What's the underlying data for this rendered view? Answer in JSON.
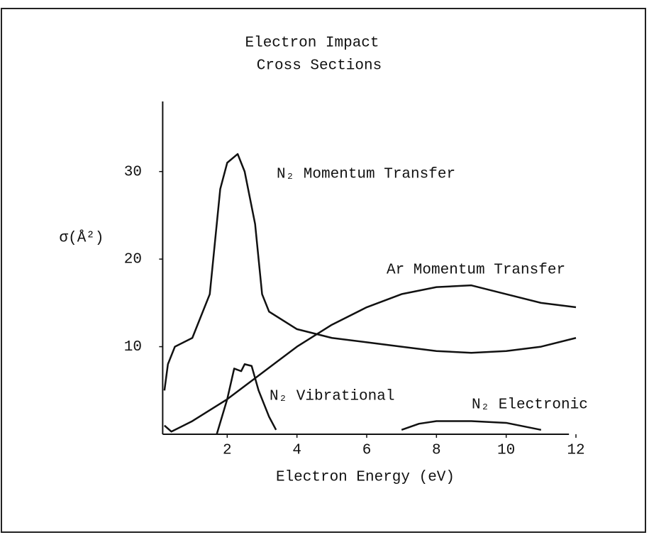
{
  "chart_data": {
    "type": "line",
    "title": [
      "Electron Impact",
      "Cross Sections"
    ],
    "xlabel": "Electron Energy (eV)",
    "ylabel": "σ(Å²)",
    "xlim": [
      0,
      12
    ],
    "ylim": [
      0,
      38
    ],
    "xticks": [
      2,
      4,
      6,
      8,
      10,
      12
    ],
    "yticks": [
      10,
      20,
      30
    ],
    "series": [
      {
        "name": "N₂ Momentum Transfer",
        "color": "#111",
        "x": [
          0.2,
          0.3,
          0.5,
          1,
          1.5,
          1.8,
          2,
          2.3,
          2.5,
          2.8,
          3,
          3.2,
          4,
          5,
          6,
          7,
          8,
          9,
          10,
          11,
          12
        ],
        "values": [
          5,
          8,
          10,
          11,
          16,
          28,
          31,
          32,
          30,
          24,
          16,
          14,
          12,
          11,
          10.5,
          10,
          9.5,
          9.3,
          9.5,
          10,
          11
        ]
      },
      {
        "name": "Ar Momentum Transfer",
        "color": "#111",
        "x": [
          0.2,
          0.4,
          1,
          2,
          3,
          4,
          5,
          6,
          7,
          8,
          9,
          10,
          11,
          12
        ],
        "values": [
          1,
          0.3,
          1.5,
          4,
          7,
          10,
          12.5,
          14.5,
          16,
          16.8,
          17,
          16,
          15,
          14.5
        ]
      },
      {
        "name": "N₂ Vibrational",
        "color": "#111",
        "x": [
          1.7,
          2,
          2.2,
          2.4,
          2.5,
          2.7,
          2.9,
          3.2,
          3.4
        ],
        "values": [
          0,
          4,
          7.5,
          7.2,
          8,
          7.8,
          5,
          2,
          0.5
        ]
      },
      {
        "name": "N₂ Electronic",
        "color": "#111",
        "x": [
          7,
          7.5,
          8,
          9,
          10,
          11
        ],
        "values": [
          0.5,
          1.2,
          1.5,
          1.5,
          1.3,
          0.5
        ]
      }
    ]
  }
}
